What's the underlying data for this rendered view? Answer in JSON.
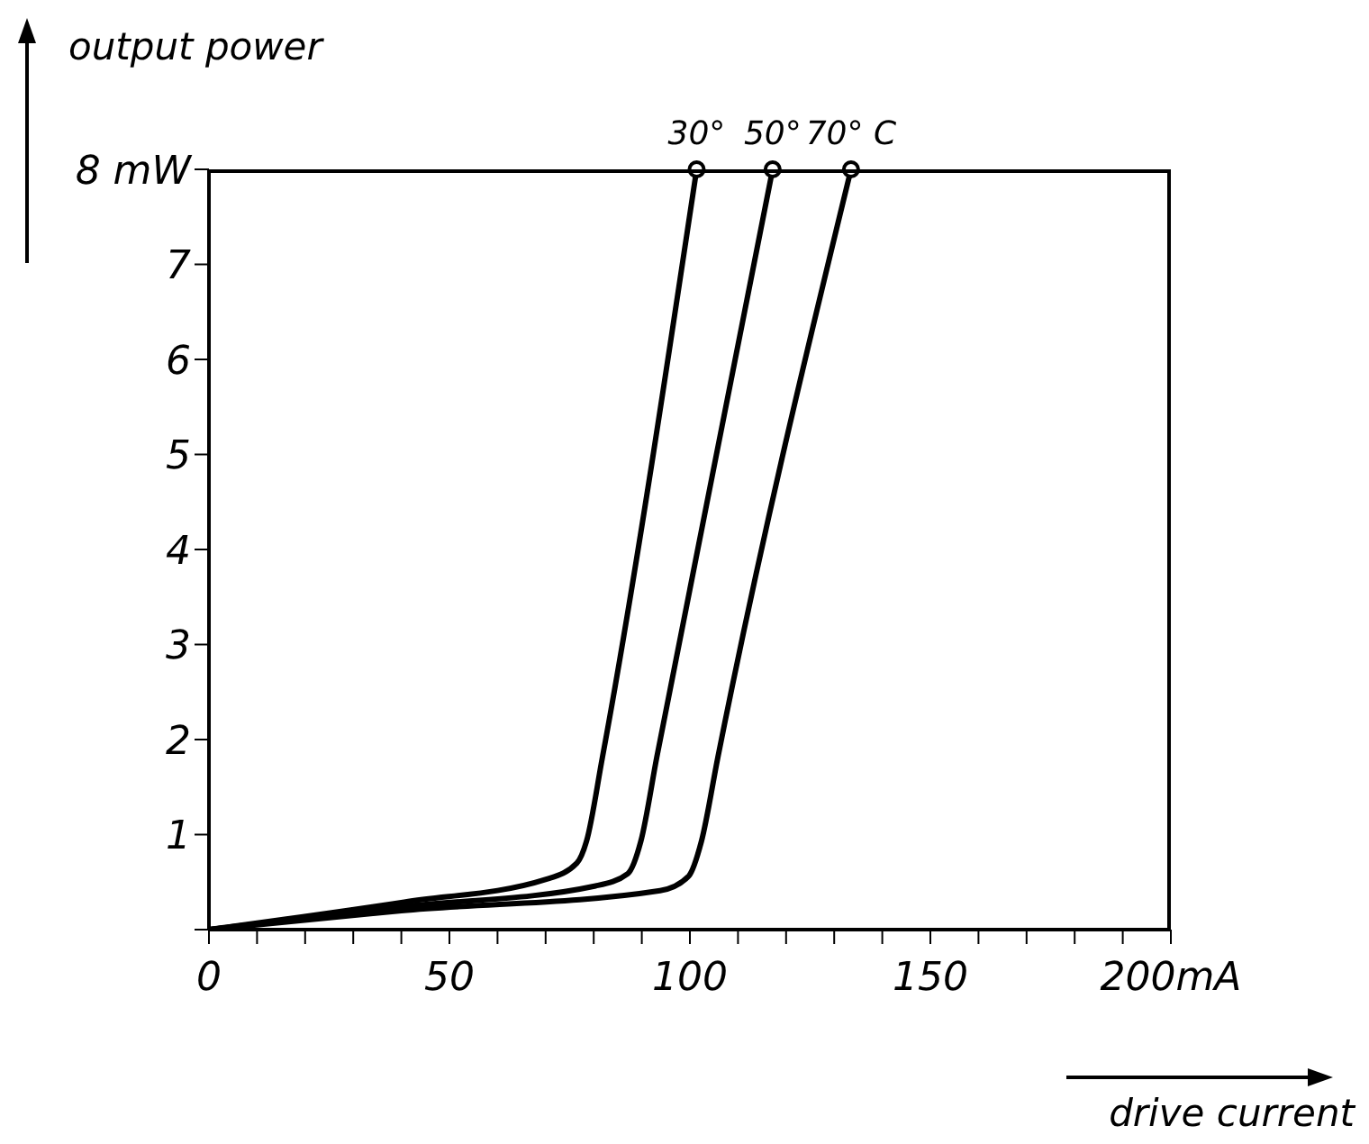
{
  "chart_data": {
    "type": "line",
    "xlabel": "drive current",
    "ylabel": "output power",
    "xlim": [
      0,
      200
    ],
    "ylim": [
      0,
      8
    ],
    "xticks": [
      0,
      {
        "value": 10,
        "label": null
      },
      {
        "value": 20,
        "label": null
      },
      {
        "value": 30,
        "label": null
      },
      {
        "value": 40,
        "label": null
      },
      50,
      {
        "value": 60,
        "label": null
      },
      {
        "value": 70,
        "label": null
      },
      {
        "value": 80,
        "label": null
      },
      {
        "value": 90,
        "label": null
      },
      100,
      {
        "value": 110,
        "label": null
      },
      {
        "value": 120,
        "label": null
      },
      {
        "value": 130,
        "label": null
      },
      {
        "value": 140,
        "label": null
      },
      150,
      {
        "value": 160,
        "label": null
      },
      {
        "value": 170,
        "label": null
      },
      {
        "value": 180,
        "label": null
      },
      {
        "value": 190,
        "label": null
      },
      {
        "value": 200,
        "label": "200mA"
      }
    ],
    "yticks": [
      {
        "value": 0,
        "label": null
      },
      1,
      2,
      3,
      4,
      5,
      6,
      7,
      {
        "value": 8,
        "label": "8 mW"
      }
    ],
    "grid": false,
    "legend": false,
    "marker": "none",
    "line_style": "solid",
    "series": [
      {
        "name": "30°",
        "color": "#000000",
        "x": [
          0,
          40.6,
          70.1,
          76.5,
          78.5,
          81.8,
          101.4
        ],
        "values": [
          0,
          0.29,
          0.53,
          0.7,
          0.93,
          1.81,
          8
        ]
      },
      {
        "name": "50°",
        "color": "#000000",
        "x": [
          0,
          40,
          80.4,
          87.1,
          89.8,
          93.1,
          117.2
        ],
        "values": [
          0,
          0.24,
          0.46,
          0.59,
          0.93,
          1.81,
          8
        ]
      },
      {
        "name": "70° C",
        "color": "#000000",
        "x": [
          0,
          40,
          93.8,
          99.7,
          102.4,
          105.8,
          133.5
        ],
        "values": [
          0,
          0.2,
          0.41,
          0.56,
          0.93,
          1.81,
          8
        ]
      }
    ]
  }
}
